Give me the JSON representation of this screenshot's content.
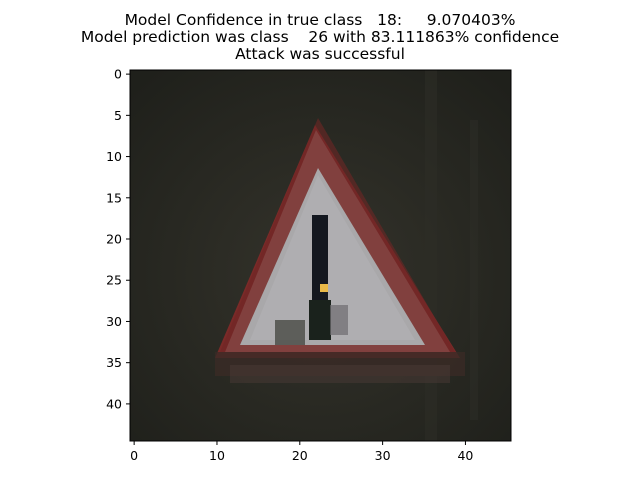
{
  "figure": {
    "title_lines": [
      "Model Confidence in true class   18:     9.070403%",
      "Model prediction was class    26 with 83.111863% confidence",
      "Attack was successful"
    ]
  },
  "image_axes": {
    "x_ticks": [
      "0",
      "10",
      "20",
      "30",
      "40"
    ],
    "y_ticks": [
      "0",
      "5",
      "10",
      "15",
      "20",
      "25",
      "30",
      "35",
      "40"
    ],
    "x_range": [
      -0.5,
      45.5
    ],
    "y_range": [
      -0.5,
      44.5
    ]
  },
  "image_content": {
    "description_icon": "warning-triangle-sign-icon",
    "colors": {
      "background": "#26261f",
      "sign_border": "#7a2a28",
      "sign_fill": "#a9a8aa",
      "exclamation": "#141820",
      "perturbation_pixel": "#e8b848"
    },
    "perturbation_pixel": {
      "x": 23,
      "y": 26
    }
  }
}
